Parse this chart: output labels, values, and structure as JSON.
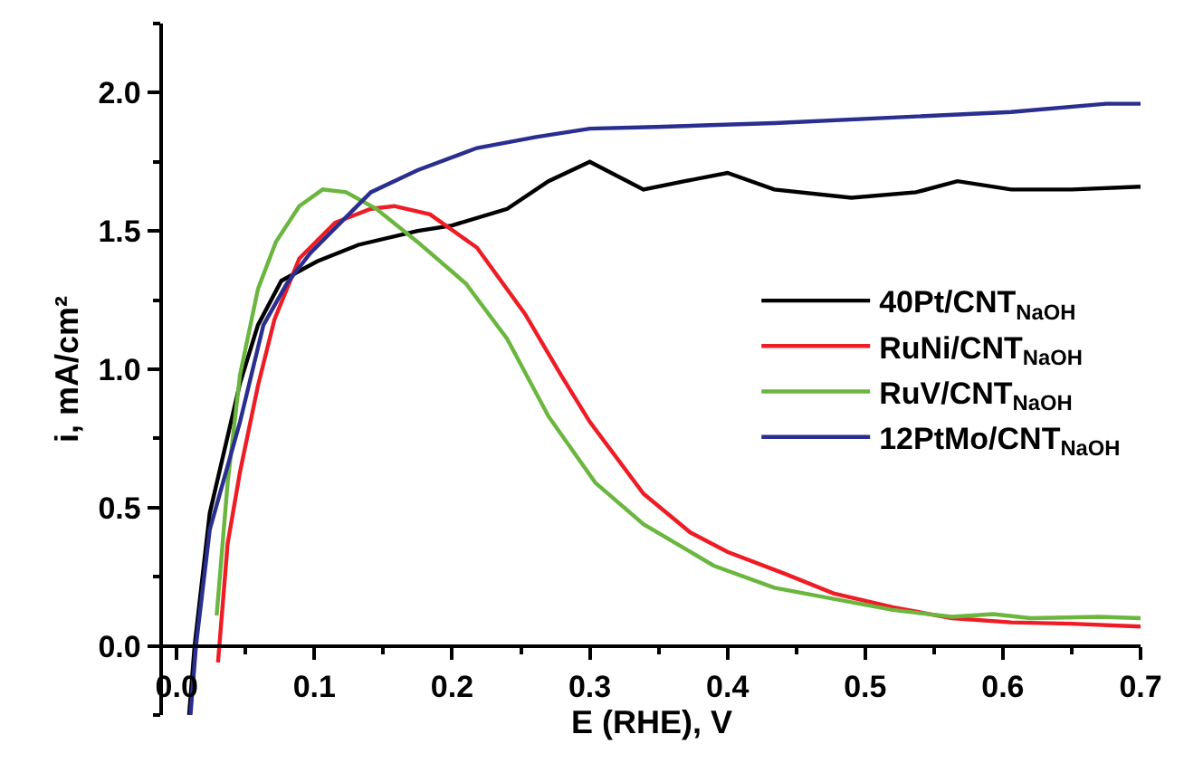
{
  "chart_data": {
    "type": "line",
    "xlabel": "E (RHE), V",
    "ylabel": "i, mA/cm²",
    "xlim": [
      -0.01,
      0.7
    ],
    "ylim": [
      -0.25,
      2.25
    ],
    "xticks": [
      {
        "value": 0,
        "label": "0.0"
      },
      {
        "value": 0.05,
        "label": null
      },
      {
        "value": 0.1,
        "label": "0.1"
      },
      {
        "value": 0.15,
        "label": null
      },
      {
        "value": 0.2,
        "label": "0.2"
      },
      {
        "value": 0.25,
        "label": null
      },
      {
        "value": 0.3,
        "label": "0.3"
      },
      {
        "value": 0.35,
        "label": null
      },
      {
        "value": 0.4,
        "label": "0.4"
      },
      {
        "value": 0.45,
        "label": null
      },
      {
        "value": 0.5,
        "label": "0.5"
      },
      {
        "value": 0.55,
        "label": null
      },
      {
        "value": 0.6,
        "label": "0.6"
      },
      {
        "value": 0.65,
        "label": null
      },
      {
        "value": 0.7,
        "label": "0.7"
      }
    ],
    "yticks": [
      {
        "value": -0.25,
        "label": null
      },
      {
        "value": 0,
        "label": "0.0"
      },
      {
        "value": 0.25,
        "label": null
      },
      {
        "value": 0.5,
        "label": "0.5"
      },
      {
        "value": 0.75,
        "label": null
      },
      {
        "value": 1,
        "label": "1.0"
      },
      {
        "value": 1.25,
        "label": null
      },
      {
        "value": 1.5,
        "label": "1.5"
      },
      {
        "value": 1.75,
        "label": null
      },
      {
        "value": 2,
        "label": "2.0"
      },
      {
        "value": 2.25,
        "label": null
      }
    ],
    "legend": "right",
    "marker": "none",
    "line_style": "solid",
    "series": [
      {
        "name": "40Pt/CNT$_{NaOH}$",
        "color": "#000000",
        "x": [
          0.009,
          0.013,
          0.024,
          0.046,
          0.059,
          0.076,
          0.102,
          0.132,
          0.175,
          0.2,
          0.24,
          0.27,
          0.3,
          0.339,
          0.369,
          0.4,
          0.434,
          0.49,
          0.537,
          0.567,
          0.606,
          0.65,
          0.7
        ],
        "values": [
          -0.25,
          0,
          0.48,
          0.95,
          1.16,
          1.32,
          1.39,
          1.45,
          1.5,
          1.52,
          1.58,
          1.68,
          1.75,
          1.65,
          1.68,
          1.71,
          1.65,
          1.62,
          1.64,
          1.68,
          1.65,
          1.65,
          1.66
        ]
      },
      {
        "name": "RuNi/CNT$_{NaOH}$",
        "color": "#ee1c25",
        "x": [
          0.03,
          0.037,
          0.046,
          0.059,
          0.071,
          0.089,
          0.115,
          0.141,
          0.158,
          0.184,
          0.218,
          0.253,
          0.279,
          0.3,
          0.339,
          0.373,
          0.4,
          0.442,
          0.477,
          0.52,
          0.563,
          0.606,
          0.65,
          0.7
        ],
        "values": [
          -0.06,
          0.37,
          0.63,
          0.94,
          1.18,
          1.4,
          1.53,
          1.58,
          1.59,
          1.56,
          1.44,
          1.2,
          0.98,
          0.81,
          0.55,
          0.41,
          0.34,
          0.26,
          0.19,
          0.14,
          0.1,
          0.085,
          0.08,
          0.07
        ]
      },
      {
        "name": "RuV/CNT$_{NaOH}$",
        "color": "#6ab63f",
        "x": [
          0.029,
          0.037,
          0.046,
          0.059,
          0.072,
          0.089,
          0.106,
          0.123,
          0.145,
          0.175,
          0.21,
          0.24,
          0.27,
          0.304,
          0.339,
          0.39,
          0.434,
          0.477,
          0.52,
          0.563,
          0.593,
          0.62,
          0.67,
          0.7
        ],
        "values": [
          0.11,
          0.59,
          0.98,
          1.29,
          1.46,
          1.59,
          1.65,
          1.64,
          1.58,
          1.46,
          1.31,
          1.11,
          0.83,
          0.59,
          0.44,
          0.29,
          0.21,
          0.17,
          0.13,
          0.105,
          0.115,
          0.1,
          0.105,
          0.1
        ]
      },
      {
        "name": "12PtMo/CNT$_{NaOH}$",
        "color": "#2a2e8f",
        "x": [
          0.01,
          0.014,
          0.024,
          0.046,
          0.063,
          0.08,
          0.097,
          0.115,
          0.141,
          0.175,
          0.218,
          0.261,
          0.3,
          0.348,
          0.434,
          0.52,
          0.606,
          0.675,
          0.7
        ],
        "values": [
          -0.25,
          0,
          0.42,
          0.81,
          1.16,
          1.31,
          1.42,
          1.51,
          1.64,
          1.72,
          1.8,
          1.84,
          1.87,
          1.876,
          1.89,
          1.91,
          1.93,
          1.96,
          1.96
        ]
      }
    ]
  }
}
